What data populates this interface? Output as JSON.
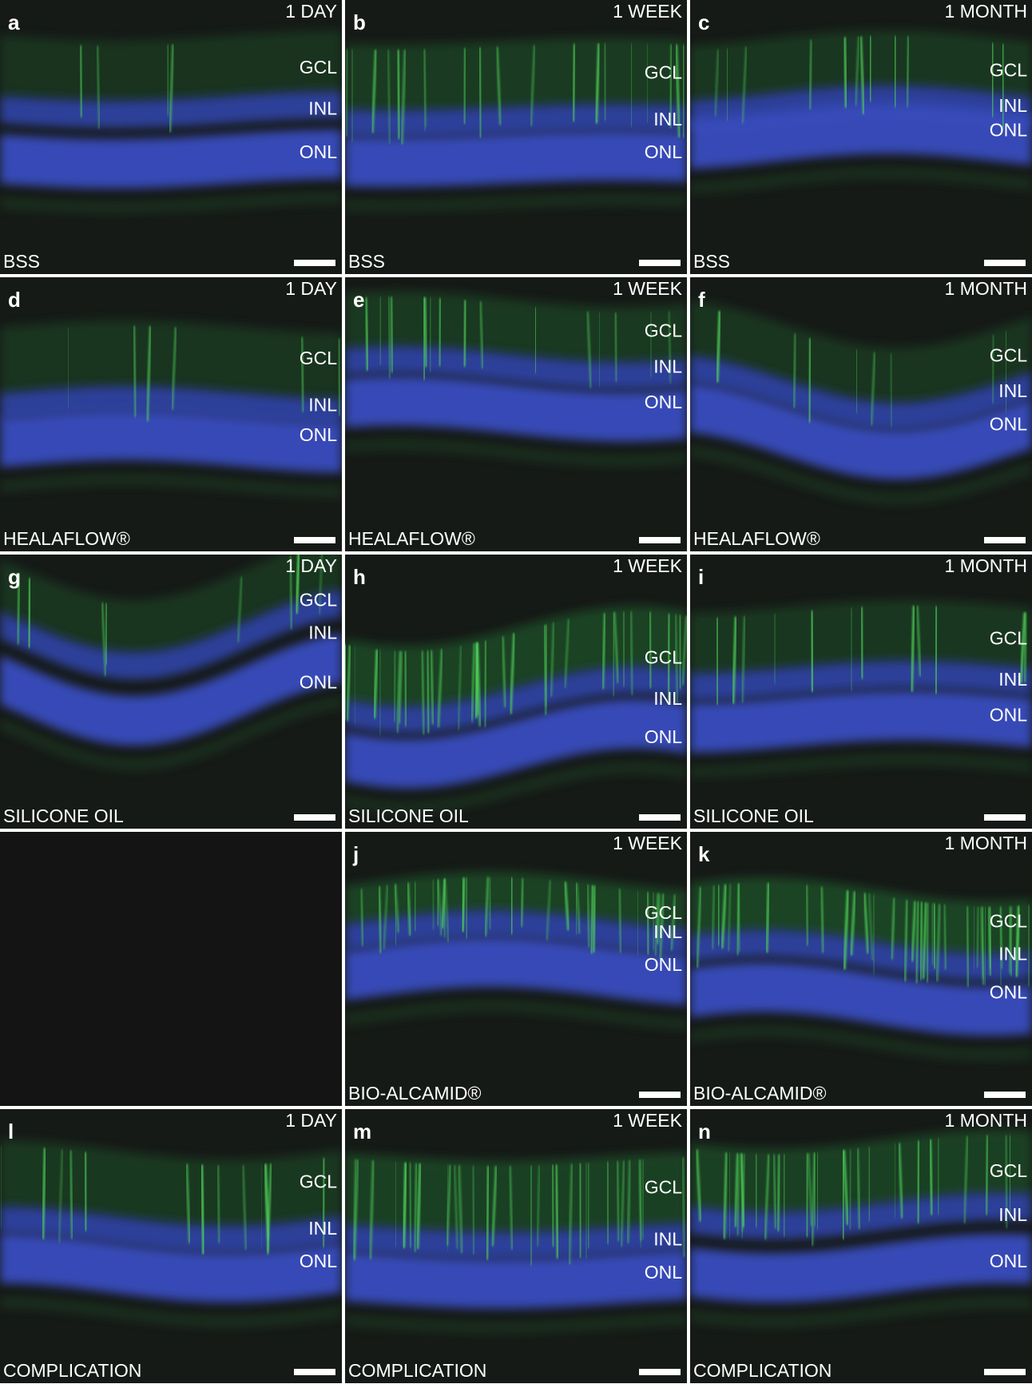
{
  "panels": [
    {
      "letter": "a",
      "time": "1 DAY",
      "layers": [
        "GCL",
        "INL",
        "ONL"
      ],
      "treatment": "BSS"
    },
    {
      "letter": "b",
      "time": "1 WEEK",
      "layers": [
        "GCL",
        "INL",
        "ONL"
      ],
      "treatment": "BSS"
    },
    {
      "letter": "c",
      "time": "1 MONTH",
      "layers": [
        "GCL",
        "INL",
        "ONL"
      ],
      "treatment": "BSS"
    },
    {
      "letter": "d",
      "time": "1 DAY",
      "layers": [
        "GCL",
        "INL",
        "ONL"
      ],
      "treatment": "HEALAFLOW®"
    },
    {
      "letter": "e",
      "time": "1 WEEK",
      "layers": [
        "GCL",
        "INL",
        "ONL"
      ],
      "treatment": "HEALAFLOW®"
    },
    {
      "letter": "f",
      "time": "1 MONTH",
      "layers": [
        "GCL",
        "INL",
        "ONL"
      ],
      "treatment": "HEALAFLOW®"
    },
    {
      "letter": "g",
      "time": "1 DAY",
      "layers": [
        "GCL",
        "INL",
        "ONL"
      ],
      "treatment": "SILICONE OIL"
    },
    {
      "letter": "h",
      "time": "1 WEEK",
      "layers": [
        "GCL",
        "INL",
        "ONL"
      ],
      "treatment": "SILICONE OIL"
    },
    {
      "letter": "i",
      "time": "1 MONTH",
      "layers": [
        "GCL",
        "INL",
        "ONL"
      ],
      "treatment": "SILICONE OIL"
    },
    {
      "letter": "j",
      "time": "1 WEEK",
      "layers": [
        "GCL",
        "INL",
        "ONL"
      ],
      "treatment": "BIO-ALCAMID®"
    },
    {
      "letter": "k",
      "time": "1 MONTH",
      "layers": [
        "GCL",
        "INL",
        "ONL"
      ],
      "treatment": "BIO-ALCAMID®"
    },
    {
      "letter": "l",
      "time": "1 DAY",
      "layers": [
        "GCL",
        "INL",
        "ONL"
      ],
      "treatment": "COMPLICATION"
    },
    {
      "letter": "m",
      "time": "1 WEEK",
      "layers": [
        "GCL",
        "INL",
        "ONL"
      ],
      "treatment": "COMPLICATION"
    },
    {
      "letter": "n",
      "time": "1 MONTH",
      "layers": [
        "GCL",
        "INL",
        "ONL"
      ],
      "treatment": "COMPLICATION"
    }
  ]
}
